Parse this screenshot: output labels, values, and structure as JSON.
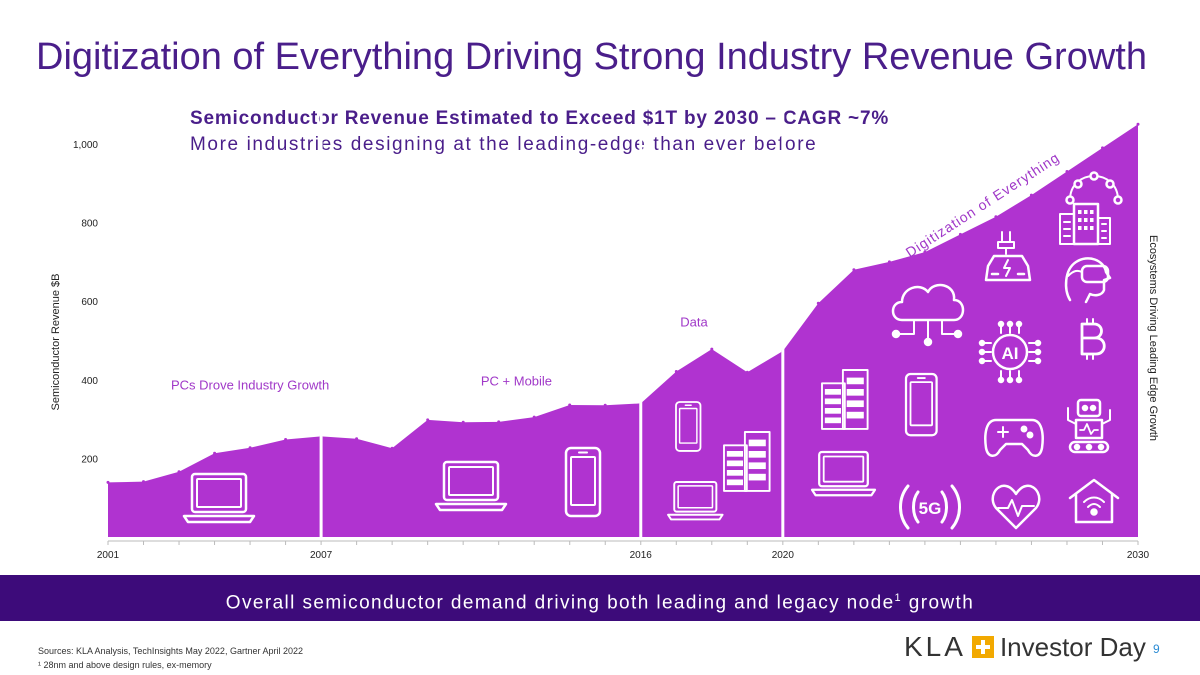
{
  "slide": {
    "title": "Digitization of Everything Driving Strong Industry Revenue Growth",
    "subtitle": "Semiconductor Revenue Estimated to Exceed $1T by 2030 – CAGR ~7%",
    "subtitle2": "More industries designing at the leading-edge than ever before",
    "banner_main": "Overall semiconductor demand driving both leading and legacy node",
    "banner_sup": "1",
    "banner_end": " growth",
    "sources": "Sources: KLA Analysis, TechInsights May 2022, Gartner April 2022",
    "footnote": "¹ 28nm and above design rules, ex-memory",
    "logo_kla": "KLA",
    "logo_text": "Investor Day",
    "page_number": "9"
  },
  "chart_data": {
    "type": "area",
    "ylabel": "Semiconductor Revenue $B",
    "ylabel_right": "Ecosystems Driving Leading Edge Growth",
    "ylim": [
      0,
      1050
    ],
    "y_ticks": [
      {
        "value": 200,
        "label": "200"
      },
      {
        "value": 400,
        "label": "400"
      },
      {
        "value": 600,
        "label": "600"
      },
      {
        "value": 800,
        "label": "800"
      },
      {
        "value": 1000,
        "label": "1,000"
      }
    ],
    "x_tick_labels": [
      {
        "year": 2001,
        "label": "2001"
      },
      {
        "year": 2007,
        "label": "2007"
      },
      {
        "year": 2016,
        "label": "2016"
      },
      {
        "year": 2020,
        "label": "2020"
      },
      {
        "year": 2030,
        "label": "2030"
      }
    ],
    "xlim": [
      2001,
      2030
    ],
    "x": [
      2001,
      2002,
      2003,
      2004,
      2005,
      2006,
      2007,
      2008,
      2009,
      2010,
      2011,
      2012,
      2013,
      2014,
      2015,
      2016,
      2017,
      2018,
      2019,
      2020,
      2021,
      2022,
      2023,
      2024,
      2025,
      2026,
      2027,
      2028,
      2029,
      2030
    ],
    "values": [
      139,
      141,
      166,
      213,
      227,
      248,
      256,
      250,
      226,
      298,
      292,
      293,
      305,
      336,
      335,
      340,
      421,
      478,
      419,
      473,
      595,
      680,
      700,
      725,
      770,
      815,
      870,
      930,
      990,
      1050
    ],
    "era_boundaries": [
      2007,
      2016,
      2020
    ],
    "era_labels": [
      {
        "label": "PCs Drove Industry Growth",
        "x": 2005,
        "y": 375
      },
      {
        "label": "PC + Mobile",
        "x": 2012.5,
        "y": 385
      },
      {
        "label": "Data",
        "x": 2017.5,
        "y": 535
      },
      {
        "label": "Digitization of Everything",
        "x": 2025.7,
        "y": 835
      }
    ],
    "grid": false,
    "colors": {
      "area": "#b033d0",
      "icons": "#ffffff",
      "label": "#a038c8",
      "text": "#222222"
    }
  },
  "icons": {
    "era1": [
      "laptop-icon"
    ],
    "era2": [
      "laptop-icon",
      "smartphone-icon"
    ],
    "era3": [
      "smartphone-icon",
      "laptop-icon",
      "server-rack-icon"
    ],
    "era4": [
      "smartphone-icon",
      "laptop-icon",
      "server-rack-icon",
      "cloud-network-icon",
      "electric-car-icon",
      "ai-chip-icon",
      "5g-signal-icon",
      "gamepad-icon",
      "heart-monitor-icon",
      "smart-home-icon",
      "bitcoin-icon",
      "robot-icon",
      "vr-headset-icon",
      "smart-building-icon",
      "iot-network-icon"
    ],
    "ai_chip_text": "AI",
    "5g_text": "5G"
  }
}
